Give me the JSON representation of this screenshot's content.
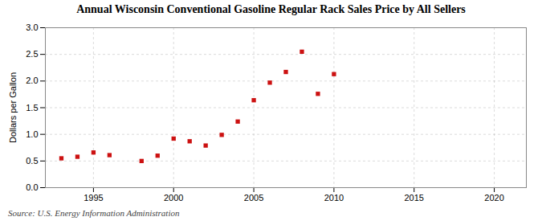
{
  "chart_data": {
    "type": "scatter",
    "title": "Annual Wisconsin Conventional Gasoline Regular Rack Sales Price by All Sellers",
    "ylabel": "Dollars per Gallon",
    "source": "Source: U.S. Energy Information Administration",
    "x": [
      1993,
      1994,
      1995,
      1996,
      1998,
      1999,
      2000,
      2001,
      2002,
      2003,
      2004,
      2005,
      2006,
      2007,
      2008,
      2009,
      2010
    ],
    "values": [
      0.55,
      0.58,
      0.66,
      0.61,
      0.5,
      0.6,
      0.92,
      0.87,
      0.79,
      0.99,
      1.24,
      1.64,
      1.97,
      2.17,
      2.55,
      1.76,
      2.13
    ],
    "color": "#cc1111",
    "marker": "square",
    "xlim": [
      1992,
      2022
    ],
    "ylim": [
      0.0,
      3.0
    ],
    "xticks": [
      1995,
      2000,
      2005,
      2010,
      2015,
      2020
    ],
    "yticks": [
      {
        "value": 0.0,
        "label": "0.0"
      },
      0.5,
      {
        "value": 1.0,
        "label": "1.0"
      },
      1.5,
      {
        "value": 2.0,
        "label": "2.0"
      },
      2.5,
      {
        "value": 3.0,
        "label": "3.0"
      }
    ],
    "grid": true
  }
}
